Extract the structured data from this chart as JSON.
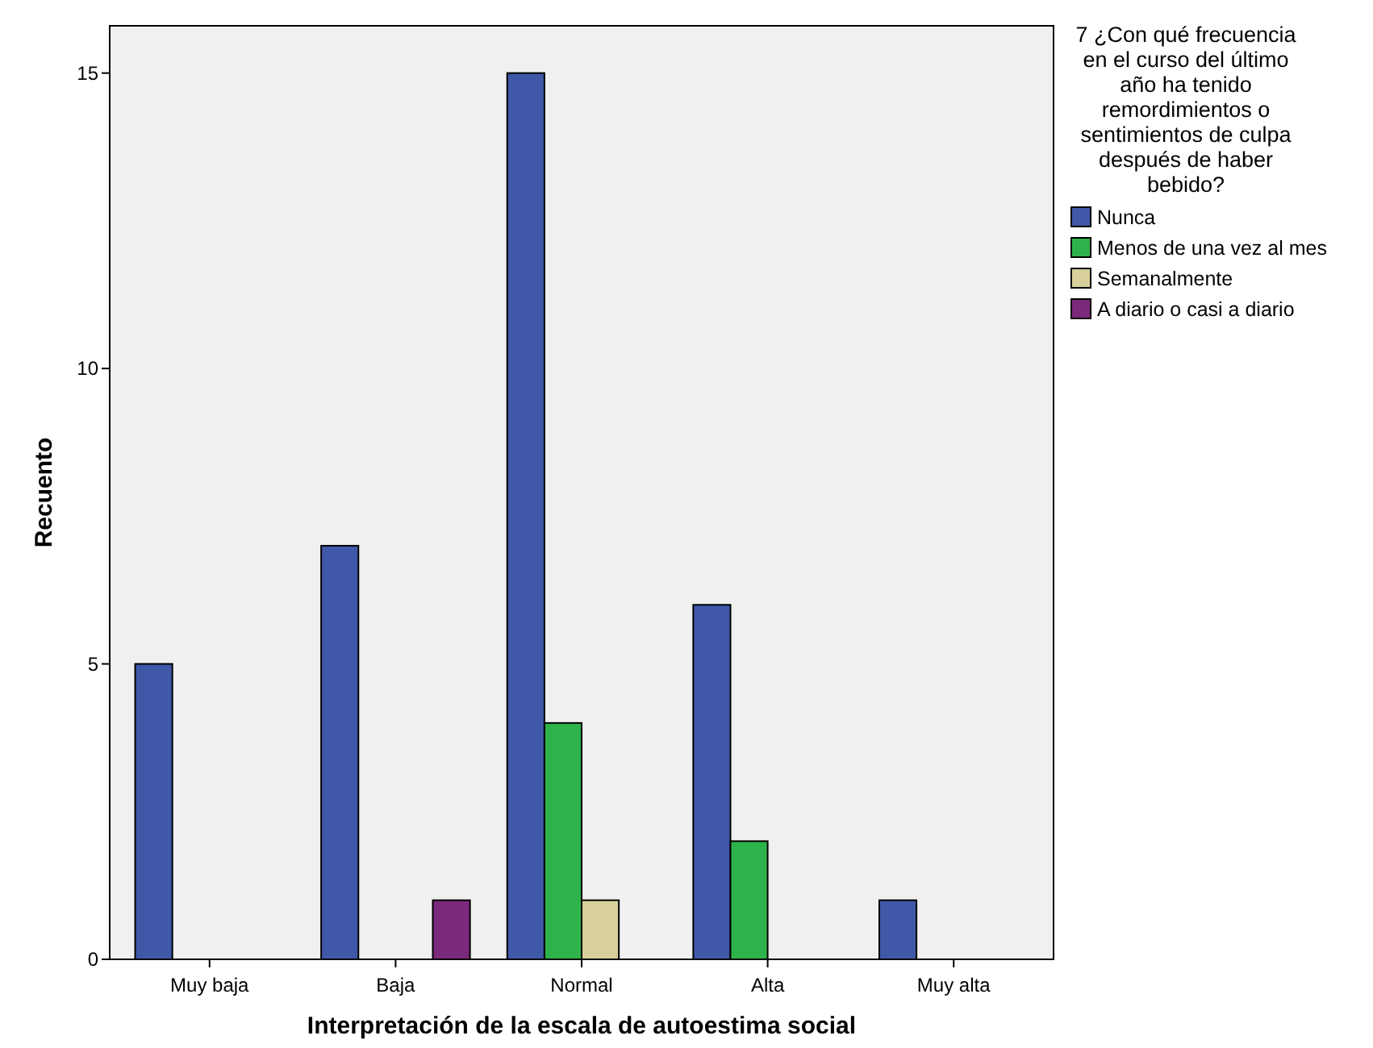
{
  "chart_data": {
    "type": "bar",
    "xlabel": "Interpretación de la escala de autoestima social",
    "ylabel": "Recuento",
    "legend_title": "7 ¿Con qué frecuencia en el curso del último año ha tenido remordimientos o sentimientos de culpa después de haber bebido?",
    "categories": [
      "Muy baja",
      "Baja",
      "Normal",
      "Alta",
      "Muy alta"
    ],
    "series": [
      {
        "name": "Nunca",
        "color": "#3f58a8",
        "values": [
          5,
          7,
          15,
          6,
          1
        ]
      },
      {
        "name": "Menos de una vez al mes",
        "color": "#2db34a",
        "values": [
          null,
          null,
          4,
          2,
          null
        ]
      },
      {
        "name": "Semanalmente",
        "color": "#d8d09a",
        "values": [
          null,
          null,
          1,
          null,
          null
        ]
      },
      {
        "name": "A diario o casi a diario",
        "color": "#7b2a7b",
        "values": [
          null,
          1,
          null,
          null,
          null
        ]
      }
    ],
    "ylim": [
      0,
      15.8
    ],
    "yticks": [
      0,
      5,
      10,
      15
    ],
    "grid": false,
    "legend": "right"
  }
}
